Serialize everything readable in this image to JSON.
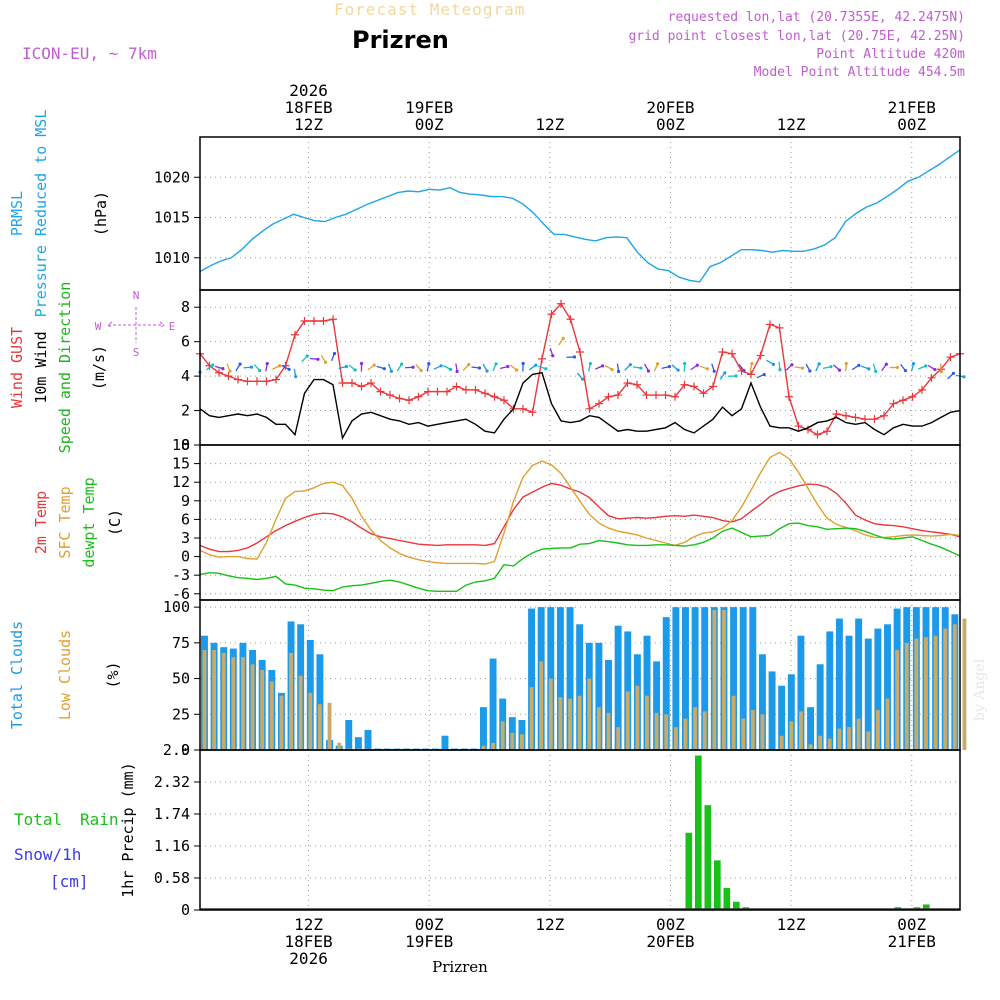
{
  "header": {
    "subtitle": "Forecast Meteogram",
    "title": "Prizren",
    "model": "ICON-EU, ~ 7km",
    "info": [
      "requested lon,lat (20.7355E, 42.2475N)",
      "grid point closest lon,lat (20.75E, 42.25N)",
      "Point Altitude 420m",
      "Model Point Altitude 454.5m"
    ]
  },
  "footer": {
    "location": "Prizren",
    "watermark": "by Angel"
  },
  "colors": {
    "pressure": "#1ea5e6",
    "gust": "#e8383c",
    "wind": "#000000",
    "direction": "#1db41d",
    "t2m": "#e8383c",
    "sfc": "#e0a030",
    "dewpt": "#18c018",
    "total_cloud": "#1a9ae8",
    "low_cloud": "#c8aa6a",
    "rain": "#18c018",
    "snow": "#3a3ae8",
    "info": "#c05cd0"
  },
  "time_axis": {
    "start_hour": 0,
    "end_hour": 63,
    "top_labels": [
      {
        "h": 9,
        "lines": [
          "2026",
          "18FEB",
          "12Z"
        ]
      },
      {
        "h": 19,
        "lines": [
          "19FEB",
          "00Z"
        ]
      },
      {
        "h": 29,
        "lines": [
          "12Z"
        ]
      },
      {
        "h": 39,
        "lines": [
          "20FEB",
          "00Z"
        ]
      },
      {
        "h": 49,
        "lines": [
          "12Z"
        ]
      },
      {
        "h": 59,
        "lines": [
          "21FEB",
          "00Z"
        ]
      }
    ],
    "bottom_labels": [
      {
        "h": 9,
        "lines": [
          "12Z",
          "18FEB",
          "2026"
        ]
      },
      {
        "h": 19,
        "lines": [
          "00Z",
          "19FEB"
        ]
      },
      {
        "h": 29,
        "lines": [
          "12Z"
        ]
      },
      {
        "h": 39,
        "lines": [
          "00Z",
          "20FEB"
        ]
      },
      {
        "h": 49,
        "lines": [
          "12Z"
        ]
      },
      {
        "h": 59,
        "lines": [
          "00Z",
          "21FEB"
        ]
      }
    ]
  },
  "chart_data": [
    {
      "type": "line",
      "id": "pressure",
      "ylabels": [
        [
          "PRMSL",
          "#1ea5e6"
        ],
        [
          "Pressure Reduced to MSL",
          "#1ea5e6"
        ],
        [
          "(hPa)",
          "#000000"
        ]
      ],
      "ylim": [
        1006,
        1025
      ],
      "yticks": [
        1010,
        1015,
        1020
      ],
      "series": [
        {
          "name": "PRMSL",
          "color": "#1ea5e6",
          "values": [
            1008.3,
            1009,
            1009.6,
            1010,
            1011,
            1012.3,
            1013.3,
            1014.2,
            1014.8,
            1015.4,
            1015,
            1014.6,
            1014.5,
            1015,
            1015.4,
            1016,
            1016.6,
            1017.1,
            1017.6,
            1018.1,
            1018.3,
            1018.2,
            1018.5,
            1018.4,
            1018.7,
            1018.1,
            1017.9,
            1017.8,
            1017.6,
            1017.6,
            1017.4,
            1016.7,
            1015.6,
            1014.2,
            1012.9,
            1012.9,
            1012.6,
            1012.3,
            1012.1,
            1012.5,
            1012.6,
            1012.5,
            1010.7,
            1009.4,
            1008.6,
            1008.4,
            1007.6,
            1007.2,
            1007,
            1008.9,
            1009.4,
            1010.2,
            1011,
            1011,
            1010.9,
            1010.7,
            1010.9,
            1010.8,
            1010.8,
            1011.1,
            1011.6,
            1012.5,
            1014.5,
            1015.5,
            1016.3,
            1016.8,
            1017.6,
            1018.5,
            1019.5,
            1020,
            1020.8,
            1021.6,
            1022.5,
            1023.4
          ]
        }
      ]
    },
    {
      "type": "line",
      "id": "wind",
      "ylabels": [
        [
          "Wind GUST",
          "#e8383c"
        ],
        [
          "10m Wind",
          "#000000"
        ],
        [
          "Speed and Direction",
          "#1db41d"
        ],
        [
          "(m/s)",
          "#000000"
        ]
      ],
      "compass": [
        "N",
        "E",
        "S",
        "W"
      ],
      "ylim": [
        0,
        9
      ],
      "yticks": [
        0,
        2,
        4,
        6,
        8
      ],
      "series": [
        {
          "name": "Wind GUST",
          "color": "#e8383c",
          "marker": "+",
          "values": [
            5.3,
            4.6,
            4.2,
            4,
            3.8,
            3.7,
            3.7,
            3.7,
            3.8,
            4.6,
            6.4,
            7.2,
            7.2,
            7.2,
            7.3,
            3.6,
            3.6,
            3.4,
            3.6,
            3.1,
            2.9,
            2.7,
            2.6,
            2.8,
            3.1,
            3.1,
            3.1,
            3.4,
            3.2,
            3.2,
            3,
            2.8,
            2.6,
            2.1,
            2.1,
            1.9,
            5,
            7.6,
            8.2,
            7.3,
            5.4,
            2.1,
            2.4,
            2.8,
            2.9,
            3.6,
            3.5,
            2.9,
            2.9,
            2.9,
            2.8,
            3.5,
            3.4,
            3,
            3.4,
            5.4,
            5.3,
            4.3,
            4.1,
            5.2,
            7,
            6.8,
            2.8,
            1.1,
            0.9,
            0.6,
            0.8,
            1.8,
            1.7,
            1.6,
            1.5,
            1.5,
            1.7,
            2.4,
            2.6,
            2.8,
            3.2,
            3.9,
            4.4,
            5.1,
            5.3
          ]
        },
        {
          "name": "10m Wind",
          "color": "#000000",
          "values": [
            2.1,
            1.7,
            1.6,
            1.7,
            1.8,
            1.7,
            1.8,
            1.6,
            1.2,
            1.2,
            0.6,
            3,
            3.8,
            3.8,
            3.5,
            0.4,
            1.4,
            1.8,
            1.9,
            1.7,
            1.5,
            1.4,
            1.2,
            1.3,
            1.1,
            1.2,
            1.3,
            1.4,
            1.5,
            1.2,
            0.8,
            0.7,
            1.5,
            2.1,
            3.6,
            4.1,
            4.2,
            2.4,
            1.4,
            1.3,
            1.4,
            1.7,
            1.6,
            1.2,
            0.8,
            0.9,
            0.8,
            0.8,
            0.9,
            1,
            1.3,
            0.9,
            0.7,
            1.1,
            1.5,
            2.2,
            1.7,
            2.1,
            3.6,
            2.2,
            1.1,
            1,
            1,
            0.8,
            1,
            1.3,
            1.4,
            1.6,
            1.3,
            1.2,
            1.3,
            0.9,
            0.6,
            1,
            1.2,
            1.1,
            1.1,
            1.3,
            1.6,
            1.9,
            2
          ]
        }
      ]
    },
    {
      "type": "line",
      "id": "temperature",
      "ylabels": [
        [
          "2m Temp",
          "#e8383c"
        ],
        [
          "SFC Temp",
          "#e0a030"
        ],
        [
          "dewpt Temp",
          "#18c018"
        ],
        [
          "(C)",
          "#000000"
        ]
      ],
      "ylim": [
        -7,
        18
      ],
      "yticks": [
        -6,
        -3,
        0,
        3,
        6,
        9,
        12,
        15,
        18
      ],
      "series": [
        {
          "name": "2m Temp",
          "color": "#e8383c",
          "values": [
            1.8,
            1.2,
            0.8,
            0.8,
            1,
            1.4,
            2.2,
            3.2,
            4.2,
            5,
            5.7,
            6.3,
            6.8,
            7,
            6.9,
            6.4,
            5.6,
            4.6,
            3.7,
            3.2,
            2.9,
            2.6,
            2.3,
            2,
            1.9,
            1.8,
            1.9,
            1.9,
            1.9,
            1.9,
            1.8,
            2.1,
            4.8,
            7.6,
            9.6,
            10.4,
            11.2,
            11.8,
            11.5,
            10.9,
            10.4,
            9.5,
            8,
            6.6,
            6.1,
            6.2,
            6.3,
            6.2,
            6.3,
            6.5,
            6.6,
            6.5,
            6.7,
            6.5,
            6.3,
            5.8,
            5.6,
            6.1,
            7.3,
            8.4,
            9.7,
            10.5,
            11,
            11.4,
            11.7,
            11.6,
            11.2,
            10.2,
            8.6,
            6.7,
            5.9,
            5.3,
            5.1,
            5,
            4.8,
            4.5,
            4.2,
            4,
            3.8,
            3.6,
            3.2
          ]
        },
        {
          "name": "SFC Temp",
          "color": "#e0a030",
          "values": [
            1,
            0.3,
            -0.1,
            0,
            0,
            -0.3,
            -0.4,
            2.3,
            6,
            9.4,
            10.5,
            10.6,
            11.1,
            11.8,
            12,
            11.5,
            9.4,
            6.5,
            4.3,
            2.6,
            1.4,
            0.5,
            -0.1,
            -0.5,
            -0.8,
            -1,
            -1.1,
            -1.1,
            -1.1,
            -1.1,
            -1.2,
            -0.8,
            3.8,
            8.9,
            12.8,
            14.7,
            15.4,
            14.8,
            13.4,
            11.2,
            8.9,
            6.8,
            5.4,
            4.6,
            4.1,
            3.8,
            3.5,
            3,
            2.6,
            2.2,
            1.8,
            2.3,
            3.2,
            3.8,
            4,
            4.6,
            5.8,
            8,
            10.7,
            13.5,
            16,
            16.8,
            15.8,
            13.6,
            11,
            8.4,
            6.2,
            5.2,
            4.7,
            4.2,
            3.5,
            3.1,
            3.1,
            3.2,
            3.4,
            3.5,
            3.4,
            3.3,
            3.4,
            3.6,
            3.4
          ]
        },
        {
          "name": "dewpt Temp",
          "color": "#18c018",
          "values": [
            -2.9,
            -2.6,
            -2.7,
            -3.1,
            -3.4,
            -3.5,
            -3.7,
            -3.5,
            -3.2,
            -4.4,
            -4.6,
            -5.1,
            -5.2,
            -5.4,
            -5.5,
            -4.9,
            -4.7,
            -4.6,
            -4.3,
            -4,
            -3.8,
            -4.1,
            -4.6,
            -5.1,
            -5.5,
            -5.6,
            -5.6,
            -5.6,
            -4.6,
            -4.1,
            -3.9,
            -3.5,
            -1.3,
            -1.5,
            -0.3,
            0.6,
            1.2,
            1.3,
            1.4,
            1.4,
            2,
            2.1,
            2.6,
            2.4,
            2.2,
            1.9,
            1.8,
            1.8,
            1.9,
            1.9,
            1.8,
            1.7,
            1.9,
            2.3,
            3,
            4.1,
            4.6,
            3.9,
            3.2,
            3.3,
            3.4,
            4.5,
            5.3,
            5.4,
            5,
            4.8,
            4.4,
            4.5,
            4.6,
            4.5,
            4.1,
            3.5,
            3,
            2.8,
            3,
            3.2,
            2.6,
            2,
            1.5,
            0.8,
            0.1
          ]
        }
      ]
    },
    {
      "type": "bar",
      "id": "clouds",
      "ylabels": [
        [
          "Total Clouds",
          "#1a9ae8"
        ],
        [
          "Low Clouds",
          "#e0a030"
        ],
        [
          "(%)",
          "#000000"
        ]
      ],
      "ylim": [
        0,
        105
      ],
      "yticks": [
        0,
        25,
        50,
        75,
        100
      ],
      "series": [
        {
          "name": "Total Clouds",
          "color": "#1a9ae8",
          "values": [
            80,
            75,
            72,
            71,
            75,
            70,
            63,
            56,
            40,
            90,
            88,
            77,
            67,
            7,
            3,
            21,
            9,
            14,
            1,
            1,
            1,
            1,
            1,
            1,
            1,
            10,
            1,
            1,
            1,
            30,
            64,
            36,
            23,
            21,
            99,
            100,
            100,
            100,
            100,
            88,
            75,
            75,
            63,
            87,
            83,
            67,
            80,
            62,
            93,
            100,
            100,
            100,
            100,
            100,
            100,
            100,
            100,
            100,
            67,
            55,
            45,
            53,
            80,
            30,
            60,
            83,
            92,
            80,
            92,
            78,
            85,
            88,
            99,
            100,
            100,
            100,
            100,
            100,
            95
          ]
        },
        {
          "name": "Low Clouds",
          "color": "#c8aa6a",
          "values": [
            70,
            70,
            68,
            65,
            65,
            60,
            56,
            48,
            38,
            68,
            52,
            40,
            32,
            33,
            5,
            1,
            1,
            0,
            0,
            0,
            0,
            0,
            0,
            0,
            0,
            0,
            0,
            0,
            0,
            3,
            5,
            20,
            12,
            11,
            44,
            62,
            50,
            37,
            36,
            38,
            50,
            30,
            26,
            16,
            41,
            45,
            38,
            26,
            25,
            16,
            22,
            30,
            27,
            98,
            98,
            38,
            22,
            28,
            25,
            0,
            10,
            20,
            27,
            4,
            10,
            8,
            15,
            16,
            22,
            13,
            28,
            36,
            70,
            75,
            78,
            79,
            80,
            85,
            88,
            92
          ]
        }
      ]
    },
    {
      "type": "bar",
      "id": "precip",
      "ylabels": [
        [
          "1hr Precip (mm)",
          "#000000"
        ]
      ],
      "legend": [
        [
          "Total",
          "#18c018"
        ],
        [
          "Rain",
          "#18c018"
        ],
        [
          "Snow/1h",
          "#3a3ae8"
        ],
        [
          "[cm]",
          "#3a3ae8"
        ]
      ],
      "ylim": [
        0,
        2.9
      ],
      "yticks": [
        0,
        0.58,
        1.16,
        1.74,
        2.32,
        2.9
      ],
      "ytick_labels": [
        "0",
        "0.58",
        "1.16",
        "1.74",
        "2.32",
        "2.9"
      ],
      "series": [
        {
          "name": "Total Rain",
          "color": "#18c018",
          "values": [
            0,
            0,
            0,
            0,
            0,
            0,
            0,
            0,
            0,
            0,
            0,
            0,
            0,
            0,
            0,
            0,
            0,
            0,
            0,
            0,
            0,
            0,
            0,
            0,
            0,
            0,
            0,
            0,
            0,
            0,
            0,
            0,
            0,
            0,
            0,
            0,
            0,
            0,
            0,
            0,
            0,
            0,
            0,
            0,
            0,
            0,
            0,
            0,
            0,
            0,
            0,
            1.4,
            2.8,
            1.9,
            0.9,
            0.4,
            0.15,
            0.05,
            0,
            0,
            0,
            0,
            0,
            0,
            0,
            0,
            0,
            0,
            0,
            0,
            0,
            0,
            0,
            0.05,
            0,
            0.05,
            0.1,
            0,
            0,
            0
          ]
        }
      ]
    }
  ]
}
